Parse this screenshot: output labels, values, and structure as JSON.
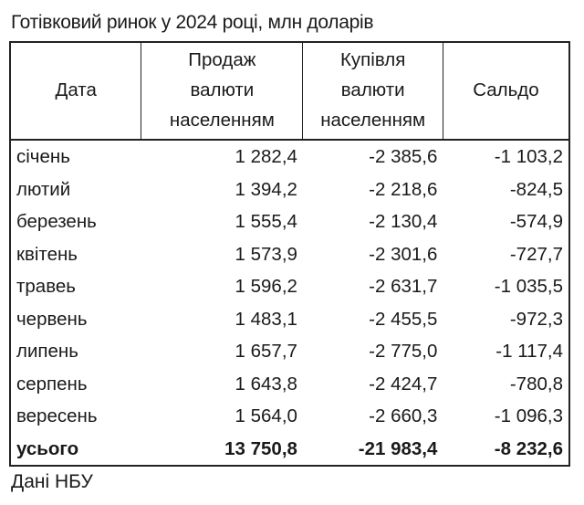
{
  "chart_data": {
    "type": "table",
    "title": "Готівковий ринок у 2024 році, млн доларів",
    "columns": [
      "Дата",
      "Продаж валюти населенням",
      "Купівля валюти населенням",
      "Сальдо"
    ],
    "column_lines": [
      [
        "Дата"
      ],
      [
        "Продаж",
        "валюти",
        "населенням"
      ],
      [
        "Купівля",
        "валюти",
        "населенням"
      ],
      [
        "Сальдо"
      ]
    ],
    "rows": [
      [
        "січень",
        "1 282,4",
        "-2 385,6",
        "-1 103,2"
      ],
      [
        "лютий",
        "1 394,2",
        "-2 218,6",
        "-824,5"
      ],
      [
        "березень",
        "1 555,4",
        "-2 130,4",
        "-574,9"
      ],
      [
        "квітень",
        "1 573,9",
        "-2 301,6",
        "-727,7"
      ],
      [
        "травеь",
        "1 596,2",
        "-2 631,7",
        "-1 035,5"
      ],
      [
        "червень",
        "1 483,1",
        "-2 455,5",
        "-972,3"
      ],
      [
        "липень",
        "1 657,7",
        "-2 775,0",
        "-1 117,4"
      ],
      [
        "серпень",
        "1 643,8",
        "-2 424,7",
        "-780,8"
      ],
      [
        "вересень",
        "1 564,0",
        "-2 660,3",
        "-1 096,3"
      ]
    ],
    "total": [
      "усього",
      "13 750,8",
      "-21 983,4",
      "-8 232,6"
    ],
    "source": "Дані НБУ"
  }
}
